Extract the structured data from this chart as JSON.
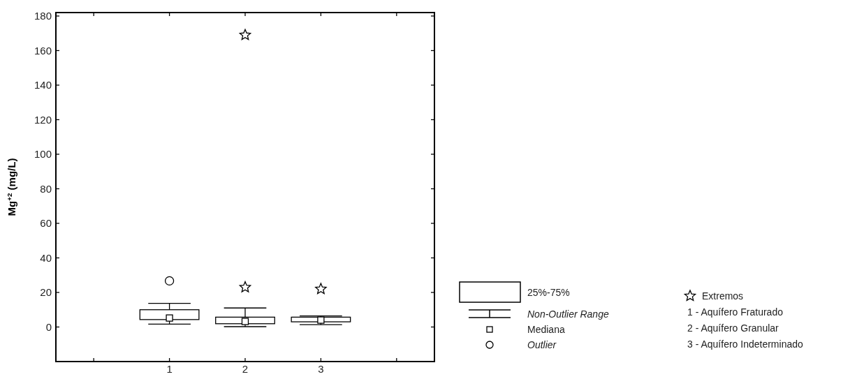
{
  "chart_data": {
    "type": "box",
    "ylabel": "Mg$^{+2}$ (mg/L)",
    "categories": [
      null,
      "1",
      "2",
      "3",
      null
    ],
    "ylim": [
      -20,
      182
    ],
    "yticks": [
      {
        "value": -20,
        "label": null
      },
      0,
      20,
      40,
      60,
      80,
      100,
      120,
      140,
      160,
      180
    ],
    "series": [
      {
        "color": "#000000",
        "boxes": [
          null,
          {
            "low": 1.7,
            "q1": 4.3,
            "median": 5.2,
            "q3": 10,
            "high": 13.7,
            "outliers": [
              26.7
            ]
          },
          {
            "low": 0.2,
            "q1": 1.9,
            "median": 3.2,
            "q3": 5.7,
            "high": 11
          },
          {
            "low": 1.4,
            "q1": 3,
            "median": 4,
            "q3": 5.7,
            "high": 6.4
          },
          null
        ]
      },
      {
        "type": "scatter",
        "name": "Extremos",
        "color": "#000000",
        "marker": "star",
        "x": [
          "2",
          "2",
          "3"
        ],
        "values": [
          169,
          23,
          22
        ]
      }
    ],
    "legend": "right",
    "grid": false,
    "annotations": [
      "25%-75%",
      "Non-Outlier Range",
      "Mediana",
      "Outlier",
      "1 - Aquífero Fraturado",
      "2 - Aquífero Granular",
      "3 - Aquífero Indeterminado"
    ]
  }
}
